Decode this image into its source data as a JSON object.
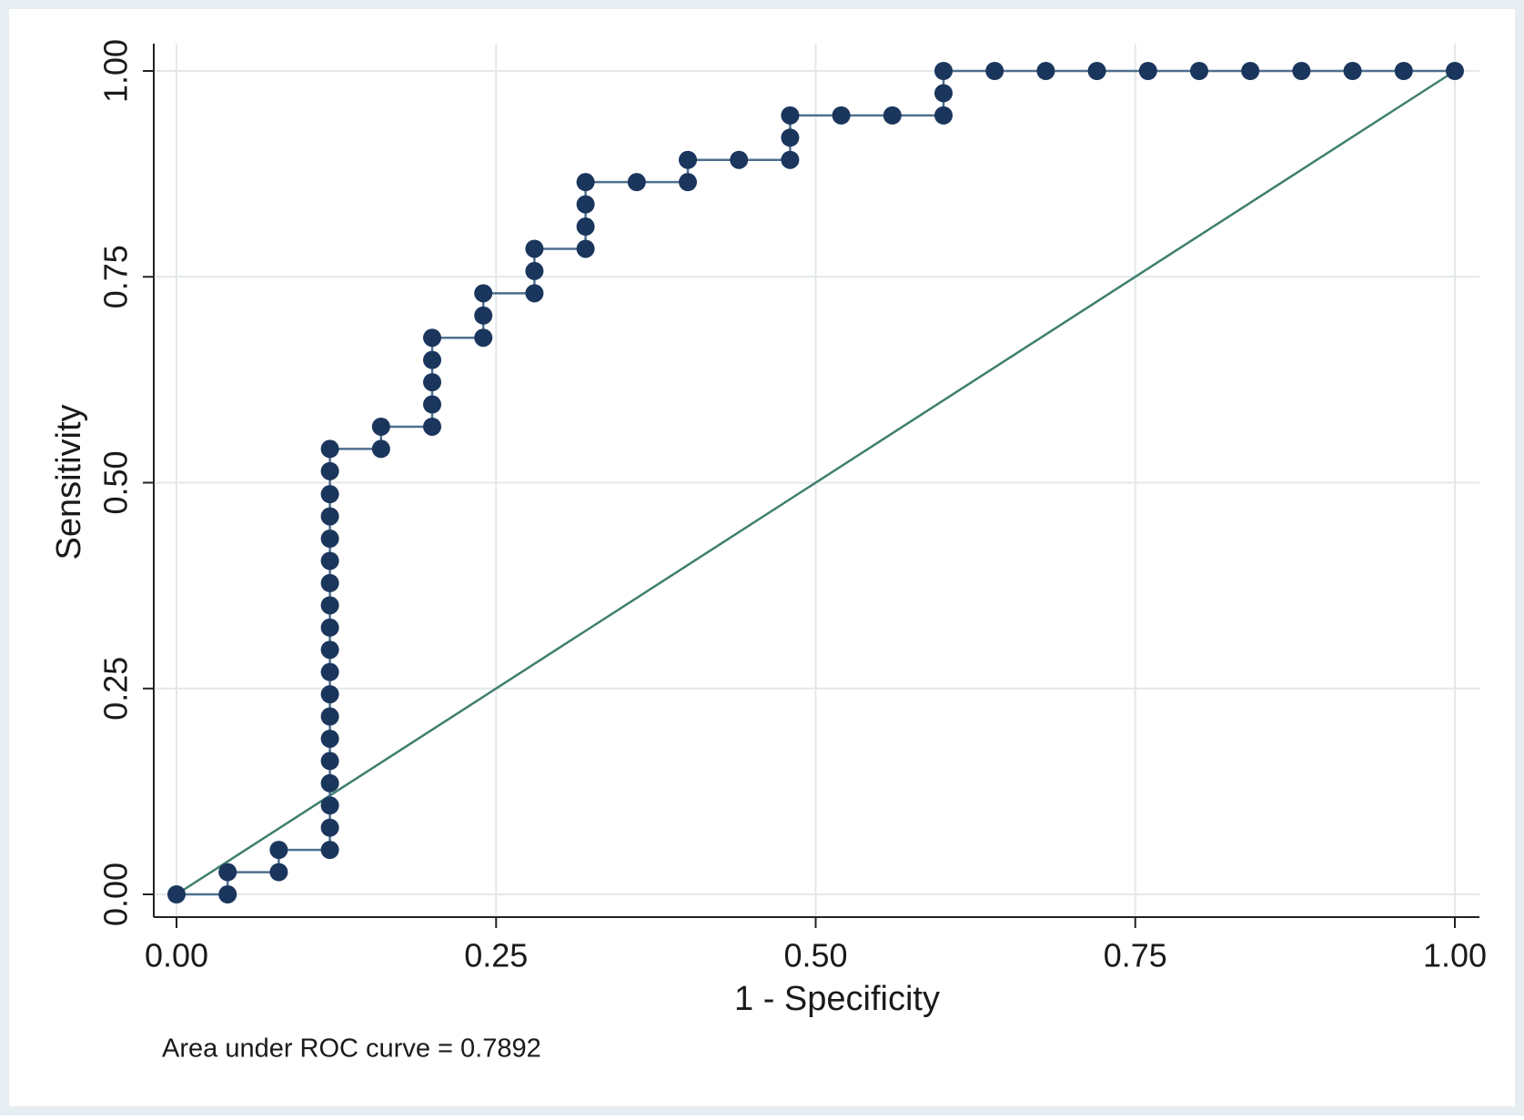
{
  "chart_data": {
    "type": "line",
    "xlabel": "1 - Specificity",
    "ylabel": "Sensitivity",
    "note": "Area under ROC curve = 0.7892",
    "xlim": [
      0,
      1
    ],
    "ylim": [
      0,
      1
    ],
    "xticks": [
      {
        "value": 0,
        "label": "0.00"
      },
      {
        "value": 0.25,
        "label": "0.25"
      },
      {
        "value": 0.5,
        "label": "0.50"
      },
      {
        "value": 0.75,
        "label": "0.75"
      },
      {
        "value": 1,
        "label": "1.00"
      }
    ],
    "yticks": [
      {
        "value": 0,
        "label": "0.00"
      },
      {
        "value": 0.25,
        "label": "0.25"
      },
      {
        "value": 0.5,
        "label": "0.50"
      },
      {
        "value": 0.75,
        "label": "0.75"
      },
      {
        "value": 1,
        "label": "1.00"
      }
    ],
    "grid": true,
    "series": [
      {
        "color": "#1b365d",
        "markers": true,
        "x": [
          0,
          0.04,
          0.04,
          0.08,
          0.08,
          0.12,
          0.12,
          0.12,
          0.12,
          0.12,
          0.12,
          0.12,
          0.12,
          0.12,
          0.12,
          0.12,
          0.12,
          0.12,
          0.12,
          0.12,
          0.12,
          0.12,
          0.12,
          0.12,
          0.16,
          0.16,
          0.2,
          0.2,
          0.2,
          0.2,
          0.2,
          0.24,
          0.24,
          0.24,
          0.28,
          0.28,
          0.28,
          0.32,
          0.32,
          0.32,
          0.32,
          0.36,
          0.4,
          0.4,
          0.44,
          0.48,
          0.48,
          0.48,
          0.52,
          0.56,
          0.6,
          0.6,
          0.6,
          0.64,
          0.68,
          0.72,
          0.76,
          0.8,
          0.84,
          0.88,
          0.92,
          0.96,
          1
        ],
        "values": [
          0,
          0,
          0.027,
          0.027,
          0.054,
          0.054,
          0.081,
          0.108,
          0.135,
          0.162,
          0.189,
          0.216,
          0.243,
          0.27,
          0.297,
          0.324,
          0.351,
          0.378,
          0.405,
          0.432,
          0.459,
          0.486,
          0.514,
          0.541,
          0.541,
          0.568,
          0.568,
          0.595,
          0.622,
          0.649,
          0.676,
          0.676,
          0.703,
          0.73,
          0.73,
          0.757,
          0.784,
          0.784,
          0.811,
          0.838,
          0.865,
          0.865,
          0.865,
          0.892,
          0.892,
          0.892,
          0.919,
          0.946,
          0.946,
          0.946,
          0.946,
          0.973,
          1,
          1,
          1,
          1,
          1,
          1,
          1,
          1,
          1,
          1,
          1
        ]
      },
      {
        "color": "#3f7f6e",
        "markers": false,
        "x": [
          0,
          1
        ],
        "values": [
          0,
          1
        ]
      }
    ]
  }
}
